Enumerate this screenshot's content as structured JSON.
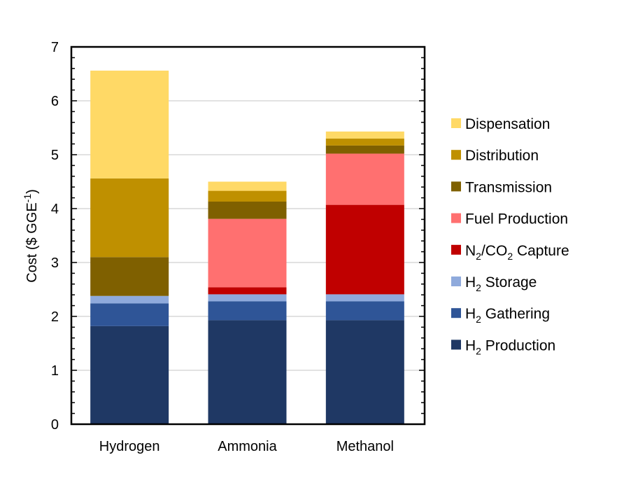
{
  "chart_data": {
    "type": "bar",
    "stacked": true,
    "categories": [
      "Hydrogen",
      "Ammonia",
      "Methanol"
    ],
    "ylabel": "Cost ($ GGE-1)",
    "ylabel_parts": {
      "main": "Cost ($ GGE",
      "sup": "-1",
      "close": ")"
    },
    "ylim": [
      0,
      7
    ],
    "yticks": [
      "0",
      "1",
      "2",
      "3",
      "4",
      "5",
      "6",
      "7"
    ],
    "grid": true,
    "legend_position": "right",
    "series": [
      {
        "name": "H2 Production",
        "label_parts": [
          "H",
          "2",
          " Production"
        ],
        "color": "#1f3864",
        "values": [
          1.82,
          1.93,
          1.93
        ]
      },
      {
        "name": "H2 Gathering",
        "label_parts": [
          "H",
          "2",
          " Gathering"
        ],
        "color": "#2f5597",
        "values": [
          0.42,
          0.35,
          0.35
        ]
      },
      {
        "name": "H2 Storage",
        "label_parts": [
          "H",
          "2",
          " Storage"
        ],
        "color": "#8faadc",
        "values": [
          0.14,
          0.13,
          0.13
        ]
      },
      {
        "name": "N2/CO2 Capture",
        "label_parts": [
          "N",
          "2",
          "/CO",
          "2",
          " Capture"
        ],
        "color": "#c00000",
        "values": [
          0.0,
          0.13,
          1.66
        ]
      },
      {
        "name": "Fuel Production",
        "label_parts": [
          "Fuel Production"
        ],
        "color": "#ff7070",
        "values": [
          0.0,
          1.27,
          0.95
        ]
      },
      {
        "name": "Transmission",
        "label_parts": [
          "Transmission"
        ],
        "color": "#7f6000",
        "values": [
          0.72,
          0.32,
          0.15
        ]
      },
      {
        "name": "Distribution",
        "label_parts": [
          "Distribution"
        ],
        "color": "#bf9000",
        "values": [
          1.46,
          0.2,
          0.13
        ]
      },
      {
        "name": "Dispensation",
        "label_parts": [
          "Dispensation"
        ],
        "color": "#ffd966",
        "values": [
          2.0,
          0.17,
          0.13
        ]
      }
    ]
  }
}
